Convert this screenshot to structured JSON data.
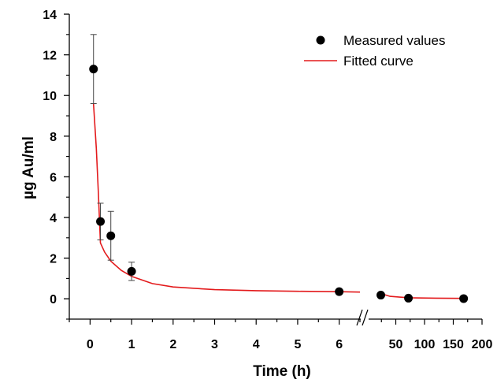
{
  "chart_data": {
    "type": "scatter",
    "xlabel": "Time (h)",
    "ylabel": "µg Au/ml",
    "ylim": [
      -1,
      14
    ],
    "axis_break": {
      "left_range": [
        -0.5,
        6.5
      ],
      "right_range": [
        0,
        200
      ]
    },
    "x_ticks_left": [
      0,
      1,
      2,
      3,
      4,
      5,
      6
    ],
    "x_ticks_right": [
      50,
      100,
      150,
      200
    ],
    "y_ticks": [
      0,
      2,
      4,
      6,
      8,
      10,
      12,
      14
    ],
    "legend": {
      "placement": "top-right",
      "entries": [
        "Measured values",
        "Fitted curve"
      ]
    },
    "series": [
      {
        "name": "Measured values",
        "kind": "points-with-error",
        "color": "#000000",
        "points": [
          {
            "x": 0.083,
            "y": 11.3,
            "err": 1.7
          },
          {
            "x": 0.25,
            "y": 3.8,
            "err": 0.9
          },
          {
            "x": 0.5,
            "y": 3.1,
            "err": 1.2
          },
          {
            "x": 1,
            "y": 1.35,
            "err": 0.45
          },
          {
            "x": 6,
            "y": 0.35,
            "err": 0
          },
          {
            "x": 24,
            "y": 0.18,
            "err": 0
          },
          {
            "x": 72,
            "y": 0.03,
            "err": 0
          },
          {
            "x": 168,
            "y": 0.01,
            "err": 0
          }
        ]
      },
      {
        "name": "Fitted curve",
        "kind": "line",
        "color": "#e31a1c",
        "points": [
          {
            "x": 0.083,
            "y": 9.6
          },
          {
            "x": 0.15,
            "y": 7.4
          },
          {
            "x": 0.2,
            "y": 5.2
          },
          {
            "x": 0.25,
            "y": 2.75
          },
          {
            "x": 0.35,
            "y": 2.3
          },
          {
            "x": 0.5,
            "y": 1.85
          },
          {
            "x": 0.75,
            "y": 1.4
          },
          {
            "x": 1,
            "y": 1.1
          },
          {
            "x": 1.5,
            "y": 0.75
          },
          {
            "x": 2,
            "y": 0.58
          },
          {
            "x": 3,
            "y": 0.45
          },
          {
            "x": 4,
            "y": 0.4
          },
          {
            "x": 5,
            "y": 0.37
          },
          {
            "x": 6,
            "y": 0.35
          },
          {
            "x": 6.5,
            "y": 0.33
          },
          {
            "x": 24,
            "y": 0.26
          },
          {
            "x": 40,
            "y": 0.12
          },
          {
            "x": 72,
            "y": 0.05
          },
          {
            "x": 120,
            "y": 0.03
          },
          {
            "x": 168,
            "y": 0.02
          }
        ]
      }
    ]
  }
}
